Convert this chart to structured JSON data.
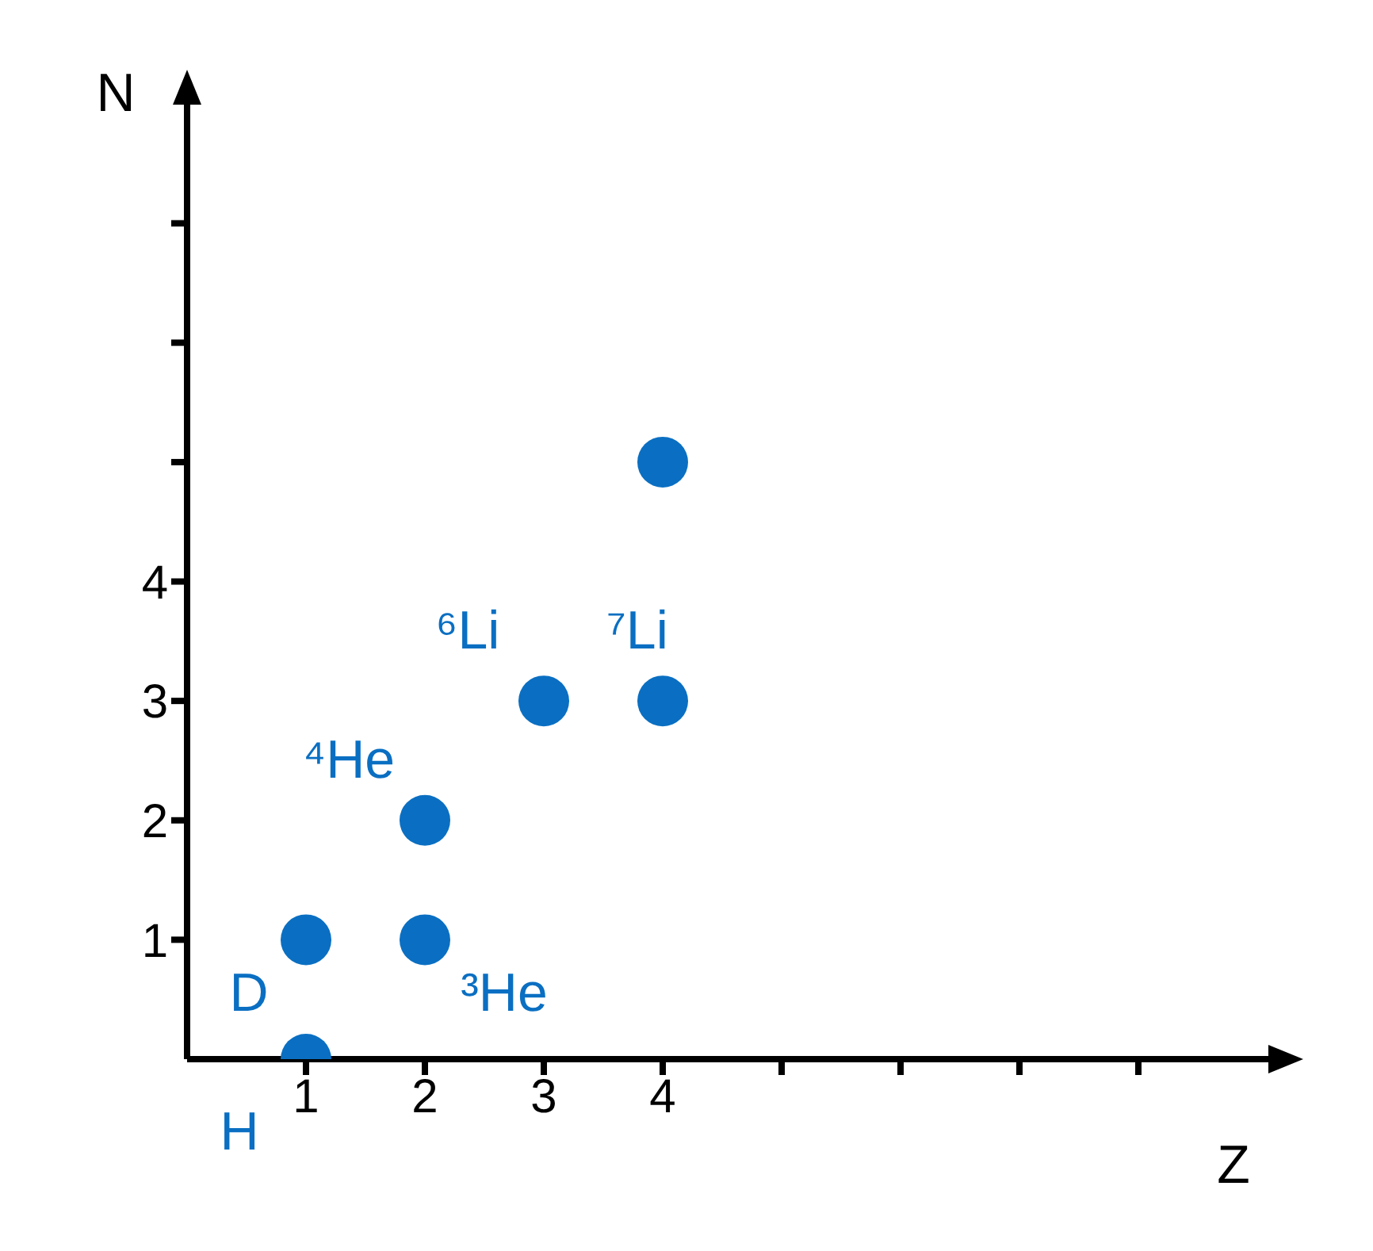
{
  "chart_data": {
    "type": "scatter",
    "xlabel": "Z",
    "ylabel": "N",
    "x": [
      1,
      1,
      2,
      2,
      3,
      4,
      4
    ],
    "values": [
      0,
      1,
      1,
      2,
      3,
      3,
      5
    ],
    "color": "#0a6fc2",
    "marker": "circle",
    "grid": false,
    "legend": false,
    "xlim": [
      0,
      9.2
    ],
    "ylim": [
      0,
      8.1
    ],
    "xticks": [
      1,
      2,
      3,
      4,
      {
        "value": 5,
        "label": null
      },
      {
        "value": 6,
        "label": null
      },
      {
        "value": 7,
        "label": null
      },
      {
        "value": 8,
        "label": null
      }
    ],
    "yticks": [
      1,
      2,
      3,
      4,
      {
        "value": 5,
        "label": null
      },
      {
        "value": 6,
        "label": null
      },
      {
        "value": 7,
        "label": null
      }
    ],
    "annotations": [
      {
        "text": "H",
        "x": 1,
        "y": 0
      },
      {
        "text": "D",
        "x": 1,
        "y": 1
      },
      {
        "text": "³He",
        "x": 2,
        "y": 1
      },
      {
        "text": "⁴He",
        "x": 2,
        "y": 2
      },
      {
        "text": "⁶Li",
        "x": 3,
        "y": 3
      },
      {
        "text": "⁷Li",
        "x": 4,
        "y": 3
      }
    ]
  }
}
